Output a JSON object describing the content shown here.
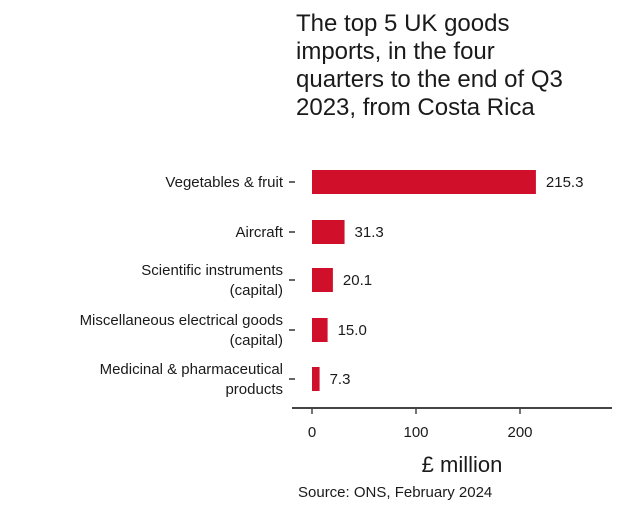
{
  "chart_data": {
    "type": "bar",
    "orientation": "horizontal",
    "title_lines": [
      "The top 5 UK goods",
      "imports, in the four",
      "quarters to the end of Q3",
      "2023, from Costa Rica"
    ],
    "categories": [
      [
        "Vegetables & fruit"
      ],
      [
        "Aircraft"
      ],
      [
        "Scientific instruments",
        "(capital)"
      ],
      [
        "Miscellaneous electrical goods",
        "(capital)"
      ],
      [
        "Medicinal & pharmaceutical",
        "products"
      ]
    ],
    "values": [
      215.3,
      31.3,
      20.1,
      15.0,
      7.3
    ],
    "value_labels": [
      "215.3",
      "31.3",
      "20.1",
      "15.0",
      "7.3"
    ],
    "xlabel": "£ million",
    "xticks": [
      0,
      100,
      200
    ],
    "xlim": [
      0,
      290
    ],
    "bar_color": "#d0102a",
    "grid": false
  },
  "source": "Source: ONS, February 2024"
}
